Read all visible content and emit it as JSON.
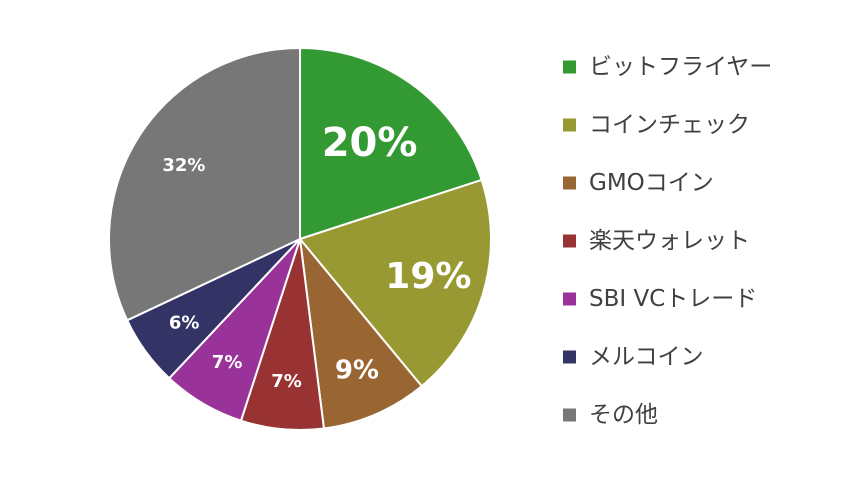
{
  "chart_data": {
    "type": "pie",
    "start_angle": "12 o'clock",
    "direction": "clockwise",
    "slices": [
      {
        "name": "ビットフライヤー",
        "value": 20,
        "label": "20%",
        "color": "#339933"
      },
      {
        "name": "コインチェック",
        "value": 19,
        "label": "19%",
        "color": "#999933"
      },
      {
        "name": "GMOコイン",
        "value": 9,
        "label": "9%",
        "color": "#996633"
      },
      {
        "name": "楽天ウォレット",
        "value": 7,
        "label": "7%",
        "color": "#993333"
      },
      {
        "name": "SBI VCトレード",
        "value": 7,
        "label": "7%",
        "color": "#993399"
      },
      {
        "name": "メルコイン",
        "value": 6,
        "label": "6%",
        "color": "#333366"
      },
      {
        "name": "その他",
        "value": 32,
        "label": "32%",
        "color": "#777777"
      }
    ],
    "legend_position": "right"
  }
}
